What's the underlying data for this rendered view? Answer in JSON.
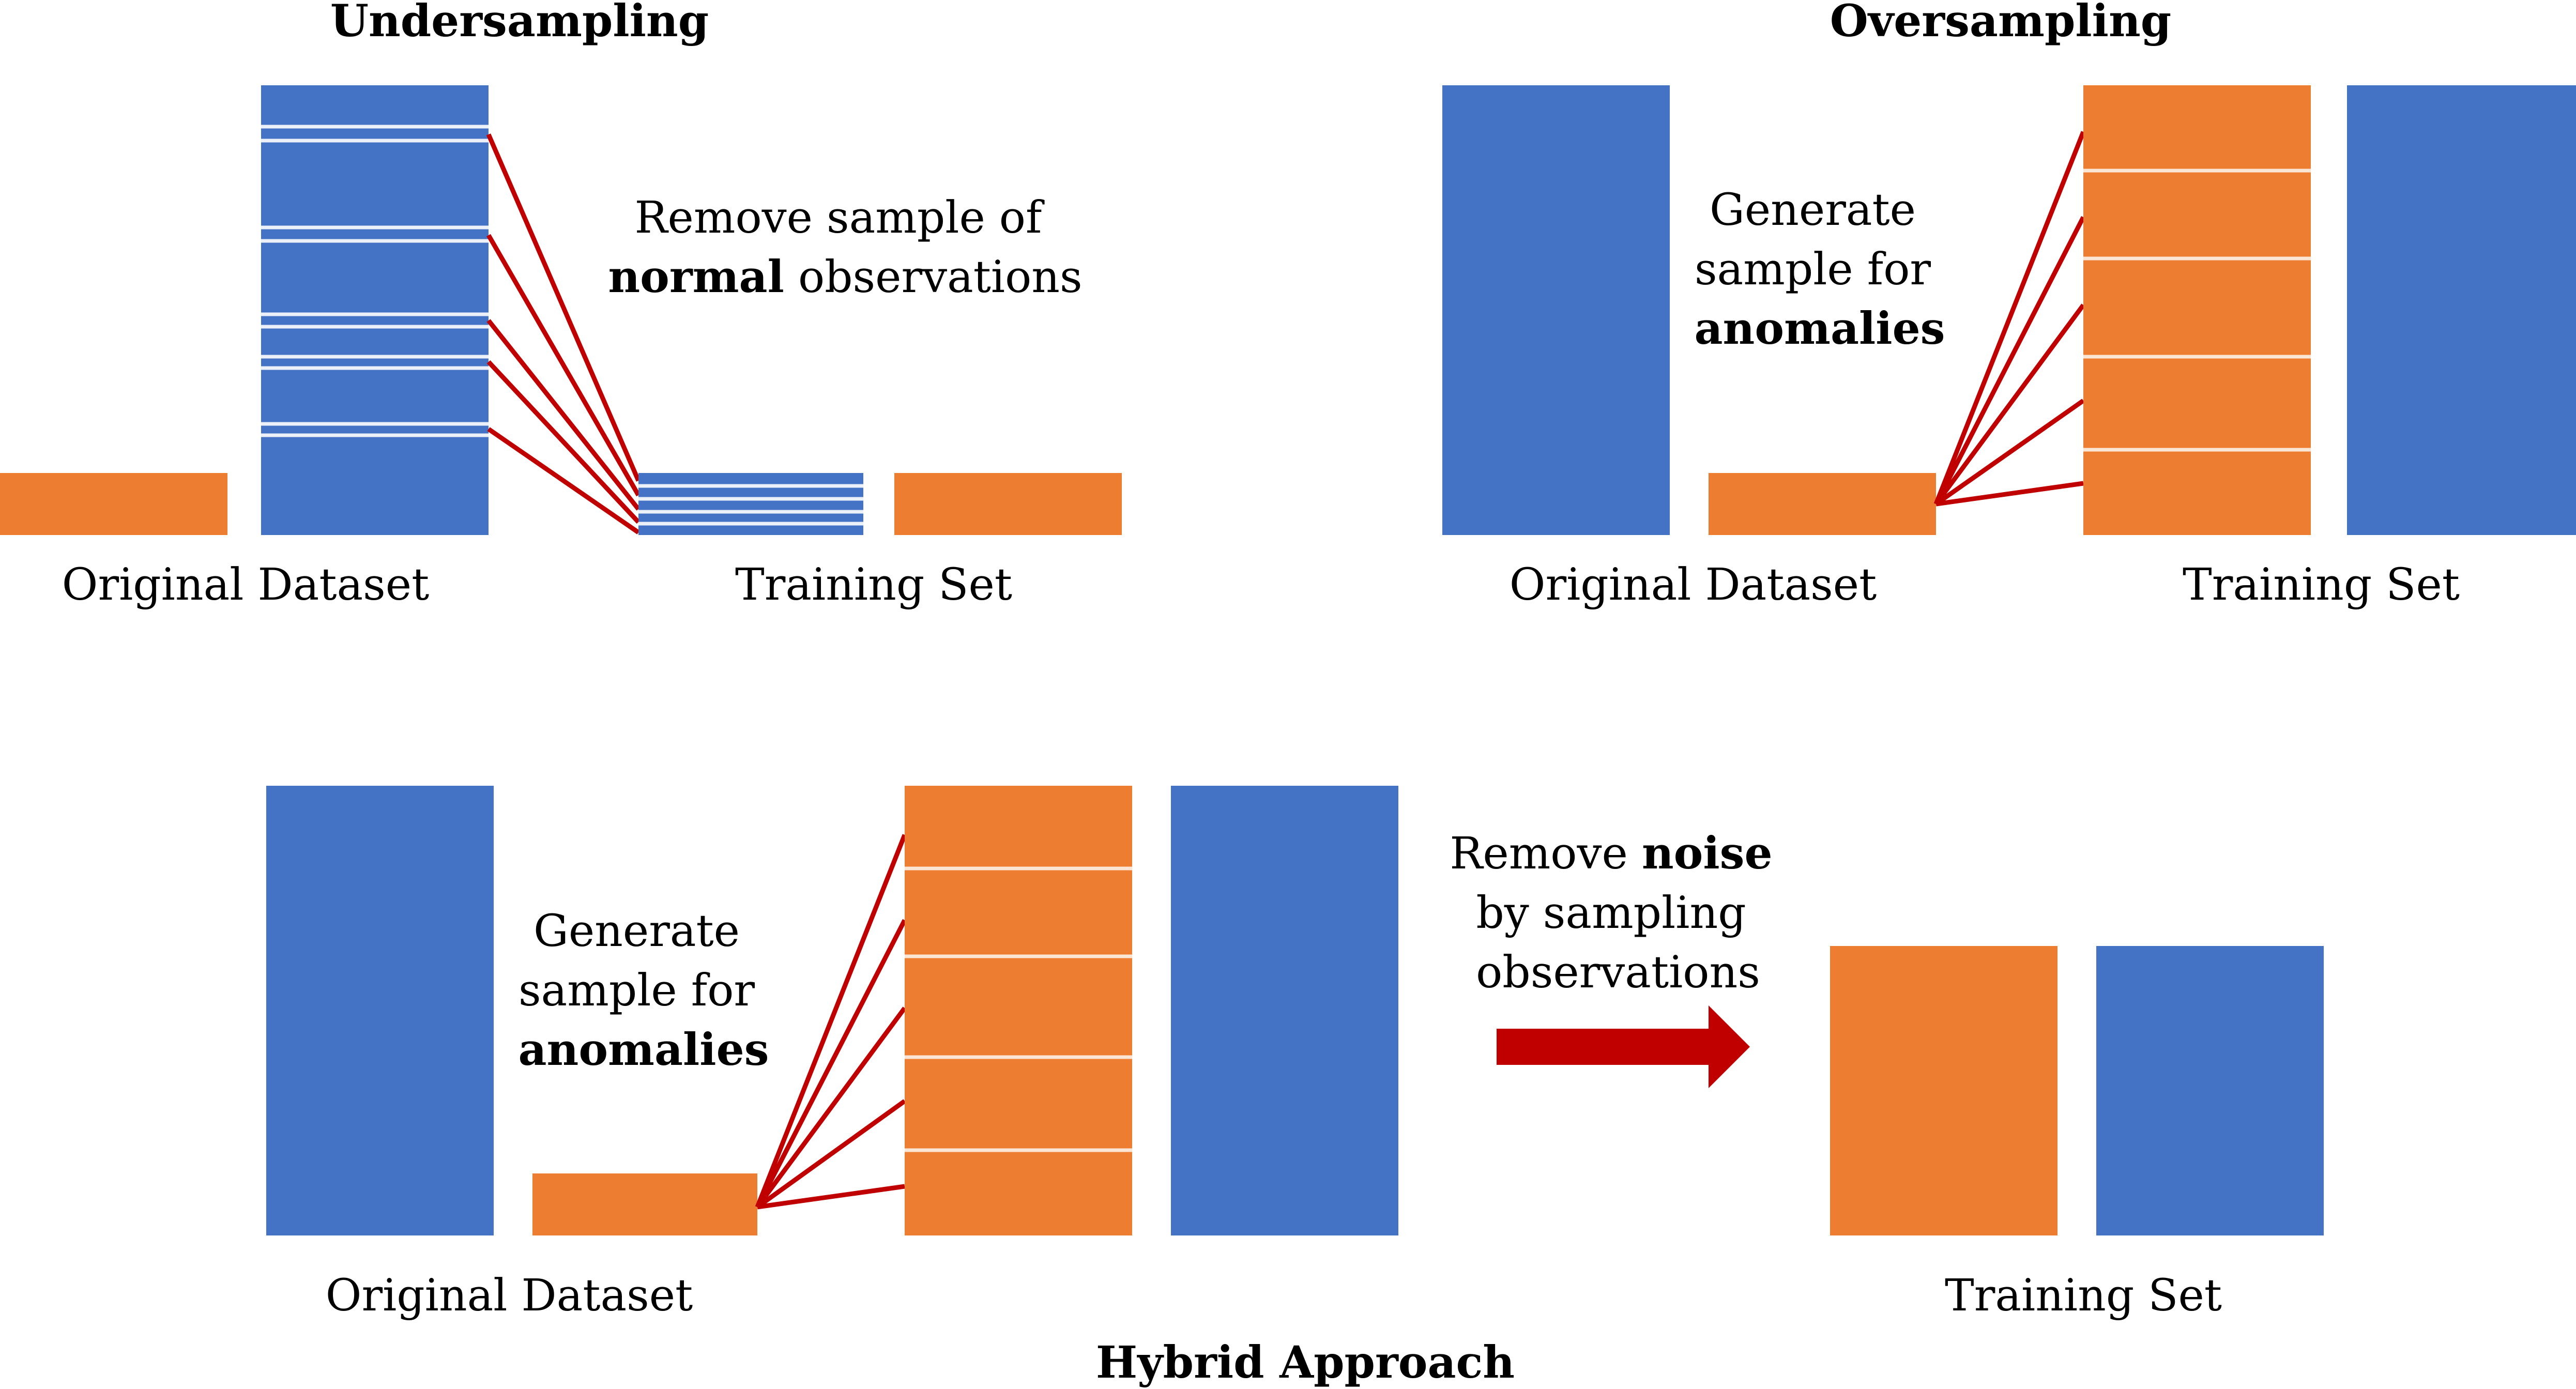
{
  "colors": {
    "normal_class": "#4472C4",
    "anomaly_class": "#ED7D31",
    "connector": "#C00000",
    "arrow": "#C00000",
    "divider": "#FFFFFF",
    "text": "#000000"
  },
  "undersampling": {
    "title": "Undersampling",
    "note_line1": "Remove sample of",
    "note_line2_bold": "normal",
    "note_line2_rest": " observations",
    "original_label": "Original Dataset",
    "training_label": "Training Set"
  },
  "oversampling": {
    "title": "Oversampling",
    "note_line1": "Generate",
    "note_line2": "sample for",
    "note_line3_bold": "anomalies",
    "original_label": "Original Dataset",
    "training_label": "Training Set"
  },
  "hybrid": {
    "title": "Hybrid Approach",
    "generate_line1": "Generate",
    "generate_line2": "sample for",
    "generate_line3_bold": "anomalies",
    "noise_line1_prefix": "Remove ",
    "noise_line1_bold": "noise",
    "noise_line2": "by sampling",
    "noise_line3": "observations",
    "original_label": "Original Dataset",
    "training_label": "Training Set"
  }
}
